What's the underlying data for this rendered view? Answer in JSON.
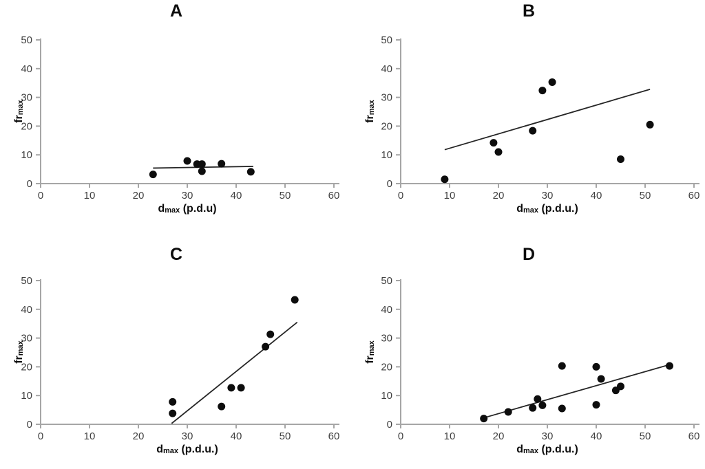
{
  "colors": {
    "background": "#ffffff",
    "axis": "#a6a6a6",
    "tick_text": "#404040",
    "label_text": "#0d0d0d",
    "point": "#0d0d0d",
    "trend": "#262626"
  },
  "chart_data": [
    {
      "id": "A",
      "type": "scatter",
      "title": "A",
      "xlabel_main": "d",
      "xlabel_sub": "max",
      "xlabel_rest": " (p.d.u)",
      "ylabel_main": "fr",
      "ylabel_sub": "max",
      "xlim": [
        0,
        60
      ],
      "ylim": [
        0,
        50
      ],
      "xticks": [
        0,
        10,
        20,
        30,
        40,
        50,
        60
      ],
      "yticks": [
        0,
        10,
        20,
        30,
        40,
        50
      ],
      "points": [
        [
          23,
          3.2
        ],
        [
          30,
          7.9
        ],
        [
          32,
          6.8
        ],
        [
          33,
          6.8
        ],
        [
          33,
          4.3
        ],
        [
          37,
          6.9
        ],
        [
          43,
          4.1
        ]
      ],
      "trendline": {
        "x1": 23,
        "y1": 5.4,
        "x2": 43.5,
        "y2": 6.0
      }
    },
    {
      "id": "B",
      "type": "scatter",
      "title": "B",
      "xlabel_main": "d",
      "xlabel_sub": "max",
      "xlabel_rest": " (p.d.u.)",
      "ylabel_main": "fr",
      "ylabel_sub": "max",
      "xlim": [
        0,
        60
      ],
      "ylim": [
        0,
        50
      ],
      "xticks": [
        0,
        10,
        20,
        30,
        40,
        50,
        60
      ],
      "yticks": [
        0,
        10,
        20,
        30,
        40,
        50
      ],
      "points": [
        [
          9,
          1.5
        ],
        [
          19,
          14.2
        ],
        [
          20,
          11
        ],
        [
          27,
          18.4
        ],
        [
          29,
          32.4
        ],
        [
          31,
          35.3
        ],
        [
          45,
          8.5
        ],
        [
          51,
          20.5
        ]
      ],
      "trendline": {
        "x1": 9,
        "y1": 11.8,
        "x2": 51,
        "y2": 32.8
      }
    },
    {
      "id": "C",
      "type": "scatter",
      "title": "C",
      "xlabel_main": "d",
      "xlabel_sub": "max",
      "xlabel_rest": " (p.d.u.)",
      "ylabel_main": "fr",
      "ylabel_sub": "max",
      "xlim": [
        0,
        60
      ],
      "ylim": [
        0,
        50
      ],
      "xticks": [
        0,
        10,
        20,
        30,
        40,
        50,
        60
      ],
      "yticks": [
        0,
        10,
        20,
        30,
        40,
        50
      ],
      "points": [
        [
          27,
          7.8
        ],
        [
          27,
          3.8
        ],
        [
          37,
          6.2
        ],
        [
          39,
          12.7
        ],
        [
          41,
          12.7
        ],
        [
          46,
          27
        ],
        [
          47,
          31.3
        ],
        [
          52,
          43.3
        ]
      ],
      "trendline": {
        "x1": 26.8,
        "y1": 0.3,
        "x2": 52.5,
        "y2": 35.5
      }
    },
    {
      "id": "D",
      "type": "scatter",
      "title": "D",
      "xlabel_main": "d",
      "xlabel_sub": "max",
      "xlabel_rest": " (p.d.u.)",
      "ylabel_main": "fr",
      "ylabel_sub": "max",
      "xlim": [
        0,
        60
      ],
      "ylim": [
        0,
        50
      ],
      "xticks": [
        0,
        10,
        20,
        30,
        40,
        50,
        60
      ],
      "yticks": [
        0,
        10,
        20,
        30,
        40,
        50
      ],
      "points": [
        [
          17,
          2
        ],
        [
          22,
          4.3
        ],
        [
          27,
          5.7
        ],
        [
          28,
          8.8
        ],
        [
          29,
          6.6
        ],
        [
          33,
          20.3
        ],
        [
          33,
          5.5
        ],
        [
          40,
          20
        ],
        [
          40,
          6.8
        ],
        [
          41,
          15.8
        ],
        [
          44,
          11.8
        ],
        [
          45,
          13.2
        ],
        [
          55,
          20.3
        ]
      ],
      "trendline": {
        "x1": 16.9,
        "y1": 2.2,
        "x2": 54.7,
        "y2": 20.6
      }
    }
  ]
}
